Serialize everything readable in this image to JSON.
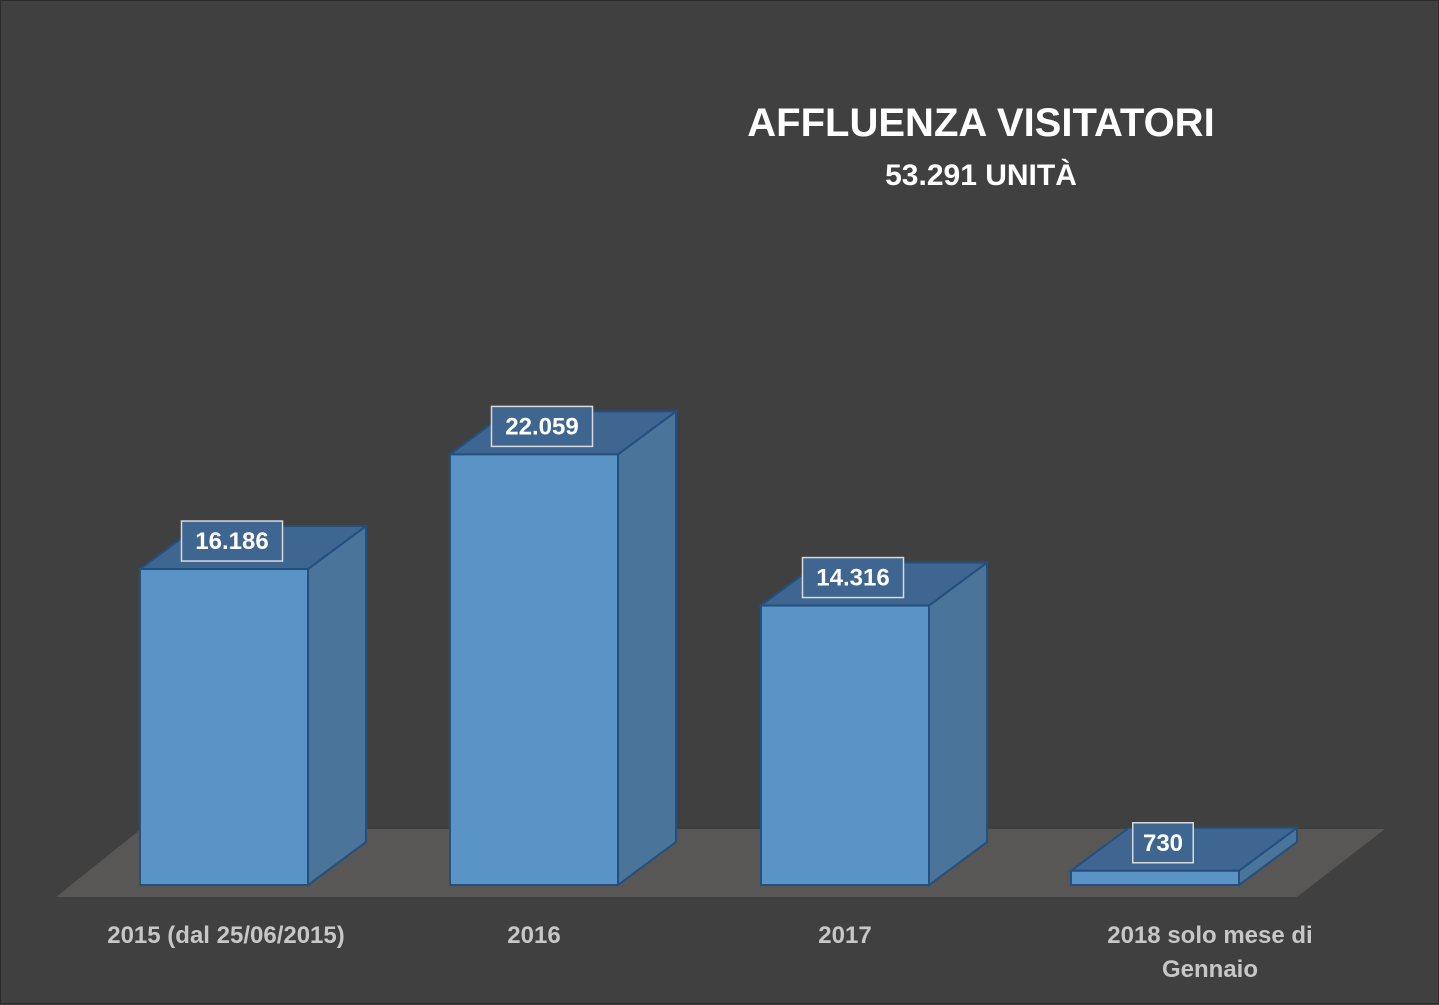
{
  "chart_data": {
    "type": "bar",
    "title": "AFFLUENZA VISITATORI",
    "subtitle": "53.291 UNITÀ",
    "categories": [
      "2015 (dal 25/06/2015)",
      "2016",
      "2017",
      "2018 solo mese di Gennaio"
    ],
    "values": [
      16186,
      22059,
      14316,
      730
    ],
    "value_labels": [
      "16.186",
      "22.059",
      "14.316",
      "730"
    ],
    "bar_style": "3d",
    "colors": {
      "background": "#404040",
      "floor": "#595656",
      "bar_front": "#5a93c5",
      "bar_side": "#4a7499",
      "bar_top": "#3f6690",
      "bar_edge": "#23507e"
    }
  }
}
